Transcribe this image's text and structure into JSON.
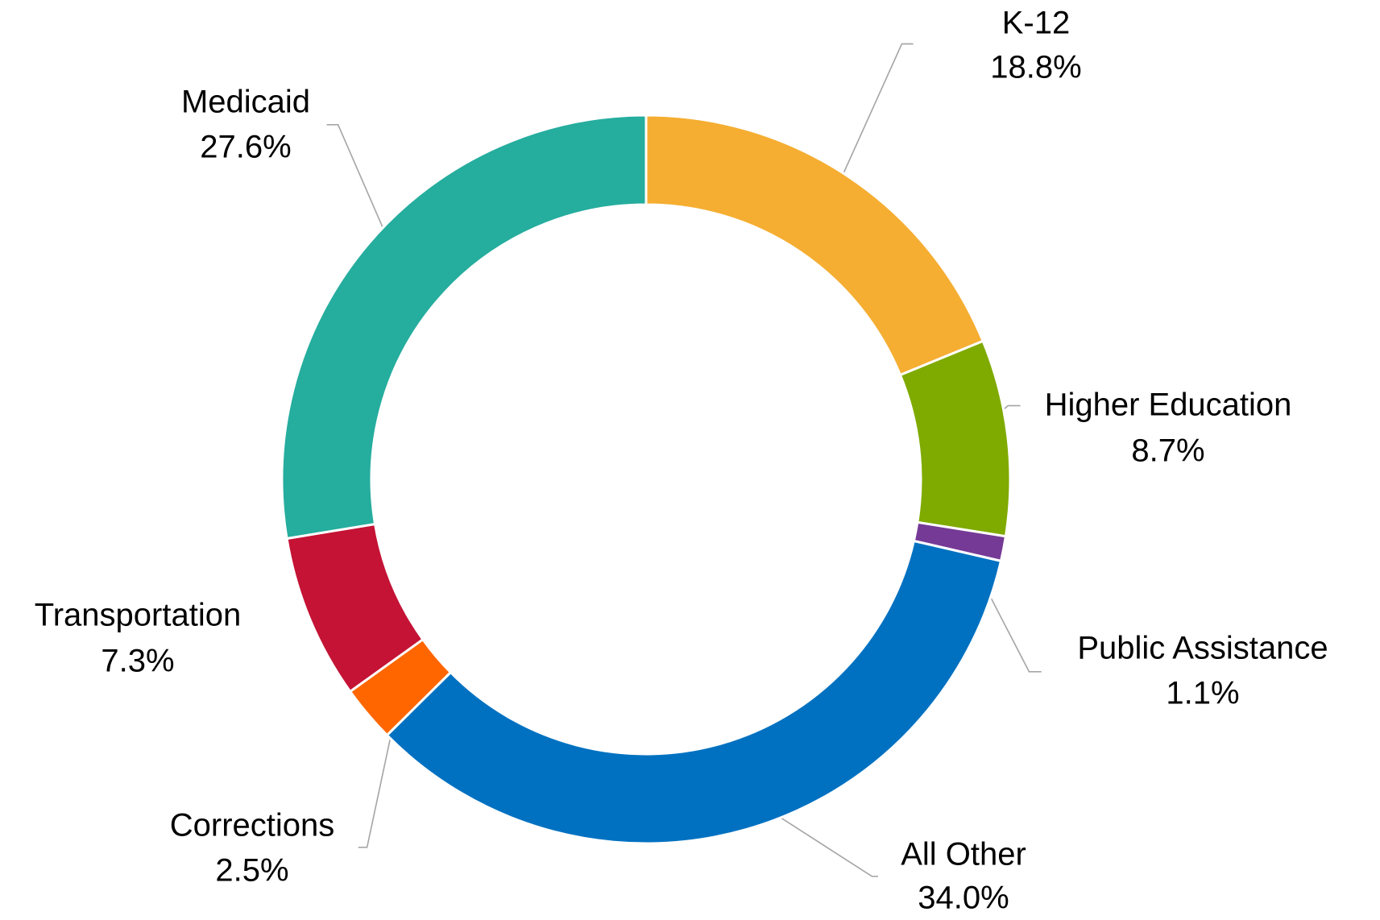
{
  "chart_data": {
    "type": "donut",
    "categories": [
      "K-12",
      "Higher Education",
      "Public Assistance",
      "All Other",
      "Corrections",
      "Transportation",
      "Medicaid"
    ],
    "values": [
      18.8,
      8.7,
      1.1,
      34.0,
      2.5,
      7.3,
      27.6
    ],
    "value_labels": [
      "18.8%",
      "8.7%",
      "1.1%",
      "34.0%",
      "2.5%",
      "7.3%",
      "27.6%"
    ],
    "colors": [
      "#f5ae32",
      "#7faa00",
      "#753a96",
      "#0071c1",
      "#ff6600",
      "#c41335",
      "#25ad9e"
    ]
  }
}
